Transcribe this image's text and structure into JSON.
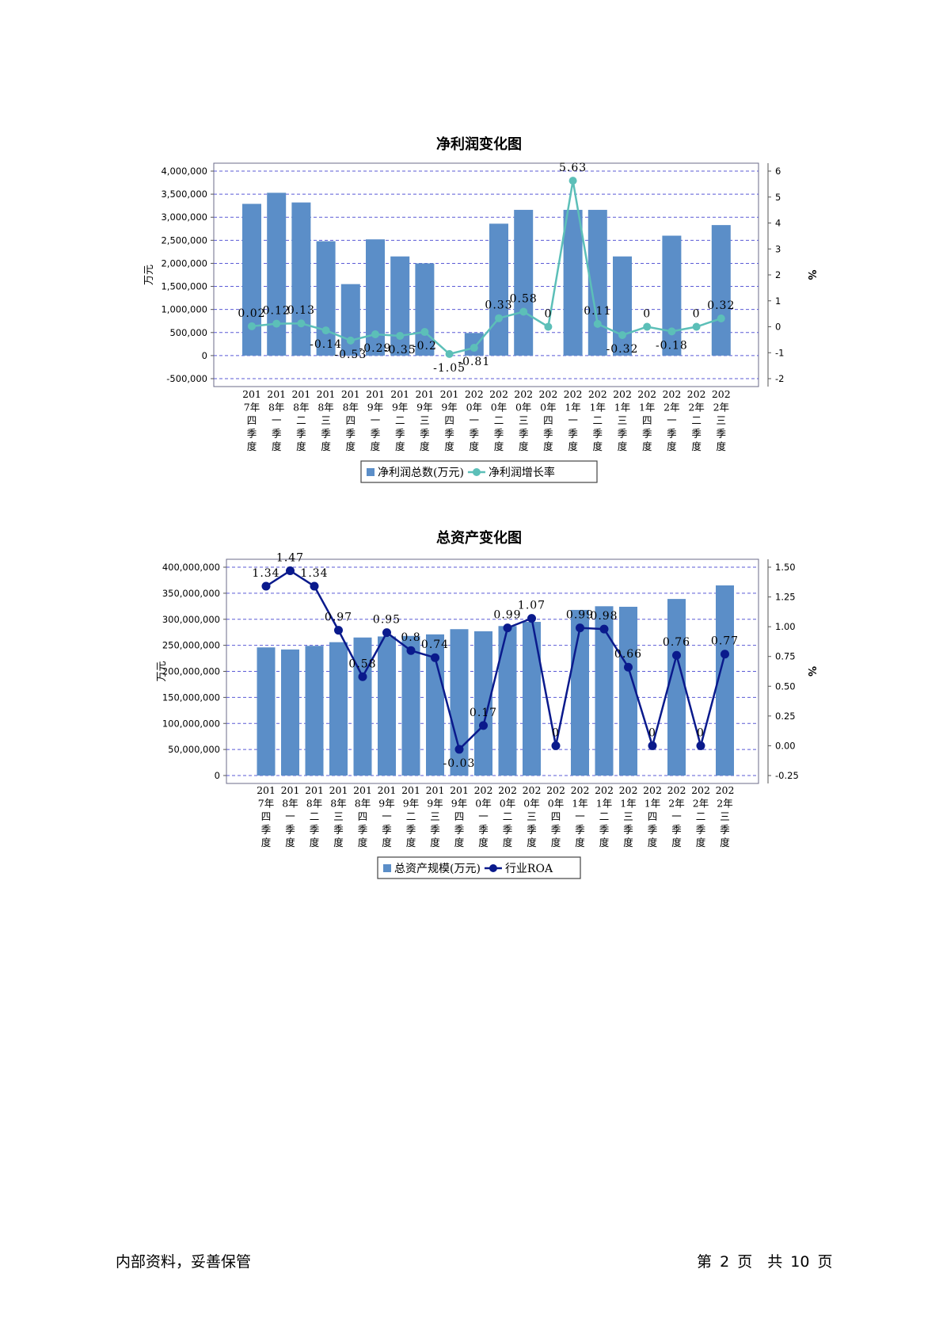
{
  "chart_data": [
    {
      "type": "bar+line",
      "title": "净利润变化图",
      "ylabel": "万元",
      "y2label": "%",
      "ylim": [
        -500000,
        4000000
      ],
      "y2lim": [
        -2,
        6
      ],
      "yticks": [
        "-500,000",
        "0",
        "500,000",
        "1,000,000",
        "1,500,000",
        "2,000,000",
        "2,500,000",
        "3,000,000",
        "3,500,000",
        "4,000,000"
      ],
      "y2ticks": [
        "-2",
        "-1",
        "0",
        "1",
        "2",
        "3",
        "4",
        "5",
        "6"
      ],
      "grid": true,
      "legend_position": "bottom",
      "categories": [
        [
          "201",
          "7年",
          "四",
          "季",
          "度"
        ],
        [
          "201",
          "8年",
          "一",
          "季",
          "度"
        ],
        [
          "201",
          "8年",
          "二",
          "季",
          "度"
        ],
        [
          "201",
          "8年",
          "三",
          "季",
          "度"
        ],
        [
          "201",
          "8年",
          "四",
          "季",
          "度"
        ],
        [
          "201",
          "9年",
          "一",
          "季",
          "度"
        ],
        [
          "201",
          "9年",
          "二",
          "季",
          "度"
        ],
        [
          "201",
          "9年",
          "三",
          "季",
          "度"
        ],
        [
          "201",
          "9年",
          "四",
          "季",
          "度"
        ],
        [
          "202",
          "0年",
          "一",
          "季",
          "度"
        ],
        [
          "202",
          "0年",
          "二",
          "季",
          "度"
        ],
        [
          "202",
          "0年",
          "三",
          "季",
          "度"
        ],
        [
          "202",
          "0年",
          "四",
          "季",
          "度"
        ],
        [
          "202",
          "1年",
          "一",
          "季",
          "度"
        ],
        [
          "202",
          "1年",
          "二",
          "季",
          "度"
        ],
        [
          "202",
          "1年",
          "三",
          "季",
          "度"
        ],
        [
          "202",
          "1年",
          "四",
          "季",
          "度"
        ],
        [
          "202",
          "2年",
          "一",
          "季",
          "度"
        ],
        [
          "202",
          "2年",
          "二",
          "季",
          "度"
        ],
        [
          "202",
          "2年",
          "三",
          "季",
          "度"
        ]
      ],
      "series": [
        {
          "name": "净利润总数(万元)",
          "type": "bar",
          "color": "#5b8ec8",
          "values": [
            3290000,
            3530000,
            3320000,
            2480000,
            1550000,
            2520000,
            2150000,
            2000000,
            0,
            490000,
            2860000,
            3160000,
            0,
            3160000,
            3160000,
            2150000,
            0,
            2600000,
            0,
            2830000
          ]
        },
        {
          "name": "净利润增长率",
          "type": "line",
          "color": "#5cbfb8",
          "values": [
            0.02,
            0.12,
            0.13,
            -0.14,
            -0.53,
            -0.29,
            -0.35,
            -0.2,
            -1.05,
            -0.81,
            0.33,
            0.58,
            0,
            5.63,
            0.11,
            -0.32,
            0,
            -0.18,
            0,
            0.32
          ],
          "labels": [
            "0.02",
            "0.12",
            "0.13",
            "-0.14",
            "-0.53",
            "-0.29",
            "-0.35",
            "-0.2",
            "-1.05",
            "-0.81",
            "0.33",
            "0.58",
            "0",
            "5.63",
            "0.11",
            "-0.32",
            "0",
            "-0.18",
            "0",
            "0.32"
          ]
        }
      ]
    },
    {
      "type": "bar+line",
      "title": "总资产变化图",
      "ylabel": "万元",
      "y2label": "%",
      "ylim": [
        0,
        400000000
      ],
      "y2lim": [
        -0.25,
        1.5
      ],
      "yticks": [
        "0",
        "50,000,000",
        "100,000,000",
        "150,000,000",
        "200,000,000",
        "250,000,000",
        "300,000,000",
        "350,000,000",
        "400,000,000"
      ],
      "y2ticks": [
        "-0.25",
        "0.00",
        "0.25",
        "0.50",
        "0.75",
        "1.00",
        "1.25",
        "1.50"
      ],
      "grid": true,
      "legend_position": "bottom",
      "categories": [
        [
          "201",
          "7年",
          "四",
          "季",
          "度"
        ],
        [
          "201",
          "8年",
          "一",
          "季",
          "度"
        ],
        [
          "201",
          "8年",
          "二",
          "季",
          "度"
        ],
        [
          "201",
          "8年",
          "三",
          "季",
          "度"
        ],
        [
          "201",
          "8年",
          "四",
          "季",
          "度"
        ],
        [
          "201",
          "9年",
          "一",
          "季",
          "度"
        ],
        [
          "201",
          "9年",
          "二",
          "季",
          "度"
        ],
        [
          "201",
          "9年",
          "三",
          "季",
          "度"
        ],
        [
          "201",
          "9年",
          "四",
          "季",
          "度"
        ],
        [
          "202",
          "0年",
          "一",
          "季",
          "度"
        ],
        [
          "202",
          "0年",
          "二",
          "季",
          "度"
        ],
        [
          "202",
          "0年",
          "三",
          "季",
          "度"
        ],
        [
          "202",
          "0年",
          "四",
          "季",
          "度"
        ],
        [
          "202",
          "1年",
          "一",
          "季",
          "度"
        ],
        [
          "202",
          "1年",
          "二",
          "季",
          "度"
        ],
        [
          "202",
          "1年",
          "三",
          "季",
          "度"
        ],
        [
          "202",
          "1年",
          "四",
          "季",
          "度"
        ],
        [
          "202",
          "2年",
          "一",
          "季",
          "度"
        ],
        [
          "202",
          "2年",
          "二",
          "季",
          "度"
        ],
        [
          "202",
          "2年",
          "三",
          "季",
          "度"
        ]
      ],
      "series": [
        {
          "name": "总资产规模(万元)",
          "type": "bar",
          "color": "#5b8ec8",
          "values": [
            246000000,
            242000000,
            249000000,
            256000000,
            265000000,
            267000000,
            268000000,
            271000000,
            281000000,
            277000000,
            287000000,
            295000000,
            0,
            318000000,
            325000000,
            324000000,
            0,
            339000000,
            0,
            365000000
          ]
        },
        {
          "name": "行业ROA",
          "type": "line",
          "color": "#0a1a8c",
          "values": [
            1.34,
            1.47,
            1.34,
            0.97,
            0.58,
            0.95,
            0.8,
            0.74,
            -0.03,
            0.17,
            0.99,
            1.07,
            0,
            0.99,
            0.98,
            0.66,
            0,
            0.76,
            0,
            0.77
          ],
          "labels": [
            "1.34",
            "1.47",
            "1.34",
            "0.97",
            "0.58",
            "0.95",
            "0.8",
            "0.74",
            "-0.03",
            "0.17",
            "0.99",
            "1.07",
            "0",
            "0.99",
            "0.98",
            "0.66",
            "0",
            "0.76",
            "0",
            "0.77"
          ]
        }
      ]
    }
  ],
  "footer": {
    "left": "内部资料，妥善保管",
    "right_prefix": "第",
    "page": "2",
    "right_mid": "页　共",
    "total": "10",
    "right_suffix": "页"
  }
}
